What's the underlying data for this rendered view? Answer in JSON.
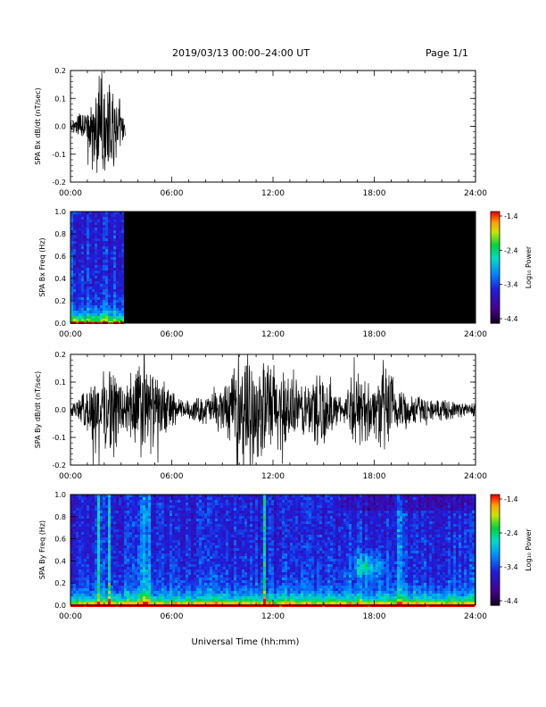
{
  "header": {
    "title": "2019/03/13  00:00–24:00 UT",
    "page": "Page 1/1"
  },
  "xlabel": "Universal Time (hh:mm)",
  "colorbar": {
    "label": "Log₁₀ Power",
    "ticks": [
      "-1.4",
      "-2.4",
      "-3.4",
      "-4.4"
    ]
  },
  "chart_data": [
    {
      "type": "line",
      "ylabel": "SPA Bx dB/dt (nT/sec)",
      "xlim": [
        0,
        24
      ],
      "ylim": [
        -0.2,
        0.2
      ],
      "x_ticks": [
        "00:00",
        "06:00",
        "12:00",
        "18:00",
        "24:00"
      ],
      "y_ticks": [
        "0.2",
        "0.1",
        "0.0",
        "-0.1",
        "-0.2"
      ],
      "envelope": {
        "x": [
          0.0,
          0.5,
          1.0,
          1.5,
          2.0,
          2.5,
          3.0,
          3.25
        ],
        "amplitude": [
          0.02,
          0.05,
          0.08,
          0.2,
          0.2,
          0.2,
          0.09,
          0.05
        ]
      },
      "data_end": 3.25
    },
    {
      "type": "heatmap",
      "ylabel": "SPA Bx Freq (Hz)",
      "xlim": [
        0,
        24
      ],
      "ylim": [
        0,
        1
      ],
      "clim": [
        -4.4,
        -1.4
      ],
      "x_ticks": [
        "00:00",
        "06:00",
        "12:00",
        "18:00",
        "24:00"
      ],
      "y_ticks": [
        "1.0",
        "0.8",
        "0.6",
        "0.4",
        "0.2",
        "0.0"
      ],
      "data_end": 3.25
    },
    {
      "type": "line",
      "ylabel": "SPA By dB/dt (nT/sec)",
      "xlim": [
        0,
        24
      ],
      "ylim": [
        -0.2,
        0.2
      ],
      "x_ticks": [
        "00:00",
        "06:00",
        "12:00",
        "18:00",
        "24:00"
      ],
      "y_ticks": [
        "0.2",
        "0.1",
        "0.0",
        "-0.1",
        "-0.2"
      ],
      "envelope": {
        "x": [
          0,
          0.5,
          1,
          1.5,
          2,
          2.5,
          3,
          3.5,
          4,
          4.5,
          5,
          5.5,
          6,
          6.5,
          7,
          7.5,
          8,
          8.5,
          9,
          9.5,
          10,
          10.5,
          11,
          11.5,
          12,
          12.5,
          13,
          13.5,
          14,
          14.5,
          15,
          15.5,
          16,
          16.5,
          17,
          17.5,
          18,
          18.5,
          19,
          19.5,
          20,
          20.5,
          21,
          21.5,
          22,
          22.5,
          23,
          23.5,
          24
        ],
        "amplitude": [
          0.03,
          0.04,
          0.1,
          0.14,
          0.15,
          0.18,
          0.12,
          0.12,
          0.2,
          0.2,
          0.14,
          0.1,
          0.09,
          0.04,
          0.04,
          0.05,
          0.06,
          0.07,
          0.1,
          0.13,
          0.2,
          0.2,
          0.2,
          0.2,
          0.2,
          0.16,
          0.13,
          0.12,
          0.1,
          0.18,
          0.15,
          0.08,
          0.05,
          0.08,
          0.15,
          0.13,
          0.1,
          0.2,
          0.15,
          0.1,
          0.07,
          0.06,
          0.05,
          0.04,
          0.04,
          0.04,
          0.03,
          0.03,
          0.03
        ]
      }
    },
    {
      "type": "heatmap",
      "ylabel": "SPA By Freq (Hz)",
      "xlim": [
        0,
        24
      ],
      "ylim": [
        0,
        1
      ],
      "clim": [
        -4.4,
        -1.4
      ],
      "x_ticks": [
        "00:00",
        "06:00",
        "12:00",
        "18:00",
        "24:00"
      ],
      "y_ticks": [
        "1.0",
        "0.8",
        "0.6",
        "0.4",
        "0.2",
        "0.0"
      ],
      "features": [
        {
          "kind": "vertical-streak",
          "hour": 1.7
        },
        {
          "kind": "vertical-streak",
          "hour": 2.3
        },
        {
          "kind": "vertical-streak",
          "hour": 4.3
        },
        {
          "kind": "vertical-streak",
          "hour": 4.6
        },
        {
          "kind": "vertical-streak",
          "hour": 11.5
        },
        {
          "kind": "vertical-streak",
          "hour": 19.5
        },
        {
          "kind": "blob",
          "hour": 17.6,
          "freq": 0.35
        }
      ]
    }
  ]
}
